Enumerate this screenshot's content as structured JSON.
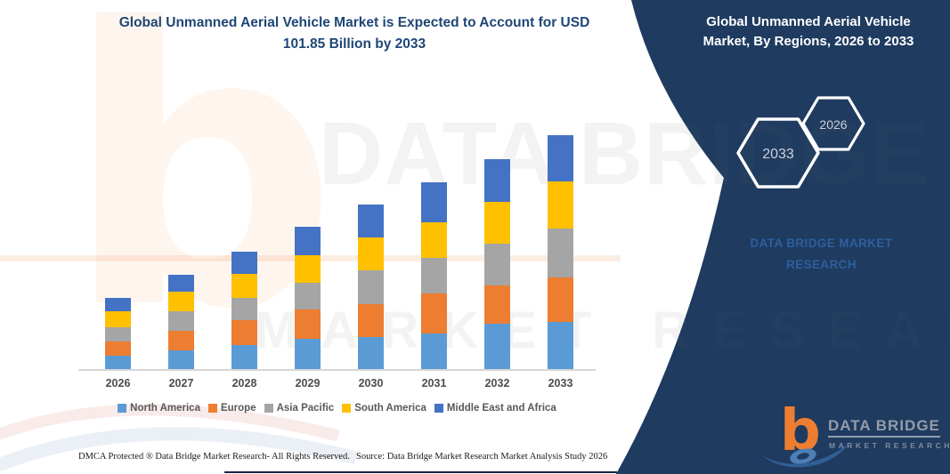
{
  "header": {
    "title_line1": "Global Unmanned Aerial Vehicle Market is Expected to Account for USD",
    "title_line2": "101.85 Billion by 2033",
    "panel_title_line1": "Global Unmanned Aerial Vehicle",
    "panel_title_line2": "Market, By Regions, 2026 to 2033",
    "hexagon_back_year": "2033",
    "hexagon_front_year": "2026",
    "brand_line1": "DATA BRIDGE MARKET",
    "brand_line2": "RESEARCH"
  },
  "chart_data": {
    "type": "bar",
    "stacked": true,
    "title": "Global Unmanned Aerial Vehicle Market is Expected to Account for USD 101.85 Billion by 2033",
    "unit": "USD Billion",
    "xlabel": "",
    "ylabel": "",
    "ylim": [
      0,
      110
    ],
    "grid": false,
    "legend_position": "bottom",
    "values_estimated_from_pixels": true,
    "categories": [
      "2026",
      "2027",
      "2028",
      "2029",
      "2030",
      "2031",
      "2032",
      "2033"
    ],
    "series": [
      {
        "name": "North America",
        "color": "#5b9bd5",
        "values": [
          5.8,
          8.1,
          10.5,
          13.2,
          13.9,
          15.5,
          19.8,
          20.5
        ]
      },
      {
        "name": "Europe",
        "color": "#ed7d31",
        "values": [
          6.2,
          8.5,
          10.8,
          12.8,
          14.3,
          17.4,
          16.7,
          19.4
        ]
      },
      {
        "name": "Asia Pacific",
        "color": "#a5a5a5",
        "values": [
          6.2,
          8.5,
          9.7,
          11.6,
          14.7,
          15.5,
          18.2,
          21.3
        ]
      },
      {
        "name": "South America",
        "color": "#ffc000",
        "values": [
          7.0,
          8.5,
          10.5,
          12.0,
          14.3,
          15.5,
          18.2,
          20.5
        ]
      },
      {
        "name": "Middle East and Africa",
        "color": "#4472c4",
        "values": [
          5.8,
          7.4,
          9.7,
          12.4,
          14.7,
          17.4,
          18.6,
          20.15
        ]
      }
    ],
    "totals": [
      31.0,
      41.0,
      51.2,
      62.0,
      71.9,
      81.3,
      91.5,
      101.85
    ]
  },
  "watermark": {
    "line1": "DATA BRIDGE",
    "line2": "MARKET RESEARCH",
    "logo_letter": "b"
  },
  "footer": {
    "dmca": "DMCA Protected ® Data Bridge Market Research-  All Rights Reserved.",
    "source": "Source: Data Bridge Market Research  Market Analysis Study 2026"
  },
  "logo": {
    "letter": "b",
    "line1": "DATA BRIDGE",
    "line2": "MARKET RESEARCH"
  },
  "colors": {
    "panel_navy": "#1f3b60",
    "title_blue": "#1f4676",
    "brand_blue": "#2d5f9e",
    "axis_gray": "#d6d6d6",
    "label_gray": "#4d4d4d",
    "legend_gray": "#595959"
  }
}
